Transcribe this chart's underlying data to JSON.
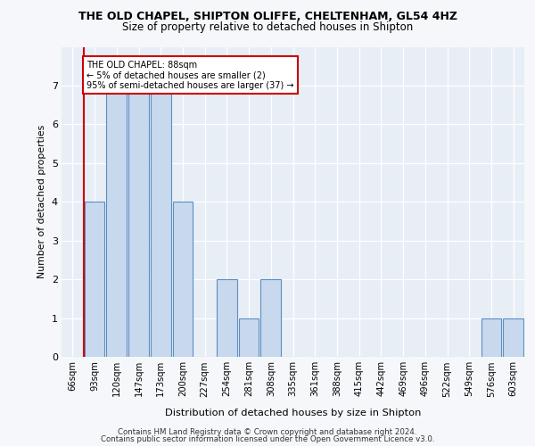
{
  "title1": "THE OLD CHAPEL, SHIPTON OLIFFE, CHELTENHAM, GL54 4HZ",
  "title2": "Size of property relative to detached houses in Shipton",
  "xlabel": "Distribution of detached houses by size in Shipton",
  "ylabel": "Number of detached properties",
  "categories": [
    "66sqm",
    "93sqm",
    "120sqm",
    "147sqm",
    "173sqm",
    "200sqm",
    "227sqm",
    "254sqm",
    "281sqm",
    "308sqm",
    "335sqm",
    "361sqm",
    "388sqm",
    "415sqm",
    "442sqm",
    "469sqm",
    "496sqm",
    "522sqm",
    "549sqm",
    "576sqm",
    "603sqm"
  ],
  "values": [
    0,
    4,
    7,
    7,
    7,
    4,
    0,
    2,
    1,
    2,
    0,
    0,
    0,
    0,
    0,
    0,
    0,
    0,
    0,
    1,
    1
  ],
  "bar_color": "#c8d9ee",
  "bar_edge_color": "#5b8ec4",
  "annotation_line1": "THE OLD CHAPEL: 88sqm",
  "annotation_line2": "← 5% of detached houses are smaller (2)",
  "annotation_line3": "95% of semi-detached houses are larger (37) →",
  "annotation_box_facecolor": "#ffffff",
  "annotation_box_edgecolor": "#cc0000",
  "subject_line_color": "#cc0000",
  "ylim": [
    0,
    8
  ],
  "yticks": [
    0,
    1,
    2,
    3,
    4,
    5,
    6,
    7,
    8
  ],
  "footer1": "Contains HM Land Registry data © Crown copyright and database right 2024.",
  "footer2": "Contains public sector information licensed under the Open Government Licence v3.0.",
  "fig_facecolor": "#f5f7fa",
  "plot_facecolor": "#e8eef5"
}
